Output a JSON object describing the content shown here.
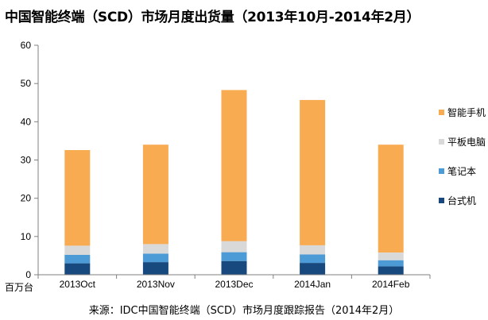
{
  "chart_data": {
    "type": "bar",
    "stacked": true,
    "title": "中国智能终端（SCD）市场月度出货量（2013年10月-2014年2月）",
    "unit_label": "百万台",
    "categories": [
      "2013Oct",
      "2013Nov",
      "2013Dec",
      "2014Jan",
      "2014Feb"
    ],
    "series": [
      {
        "name": "台式机",
        "color": "#17497e",
        "values": [
          3.0,
          3.3,
          3.6,
          3.1,
          2.2
        ]
      },
      {
        "name": "笔记本",
        "color": "#4c9bd6",
        "values": [
          2.2,
          2.2,
          2.3,
          2.2,
          1.6
        ]
      },
      {
        "name": "平板电脑",
        "color": "#d9d9d9",
        "values": [
          2.4,
          2.5,
          2.9,
          2.4,
          2.0
        ]
      },
      {
        "name": "智能手机",
        "color": "#f9ab52",
        "values": [
          25.0,
          26.0,
          39.5,
          38.0,
          28.2
        ]
      }
    ],
    "ylim": [
      0,
      60
    ],
    "yticks": [
      0,
      10,
      20,
      30,
      40,
      50,
      60
    ],
    "grid": false,
    "legend_position": "right",
    "legend_order": [
      "智能手机",
      "平板电脑",
      "笔记本",
      "台式机"
    ],
    "source_note": "来源：IDC中国智能终端（SCD）市场月度跟踪报告（2014年2月）"
  }
}
